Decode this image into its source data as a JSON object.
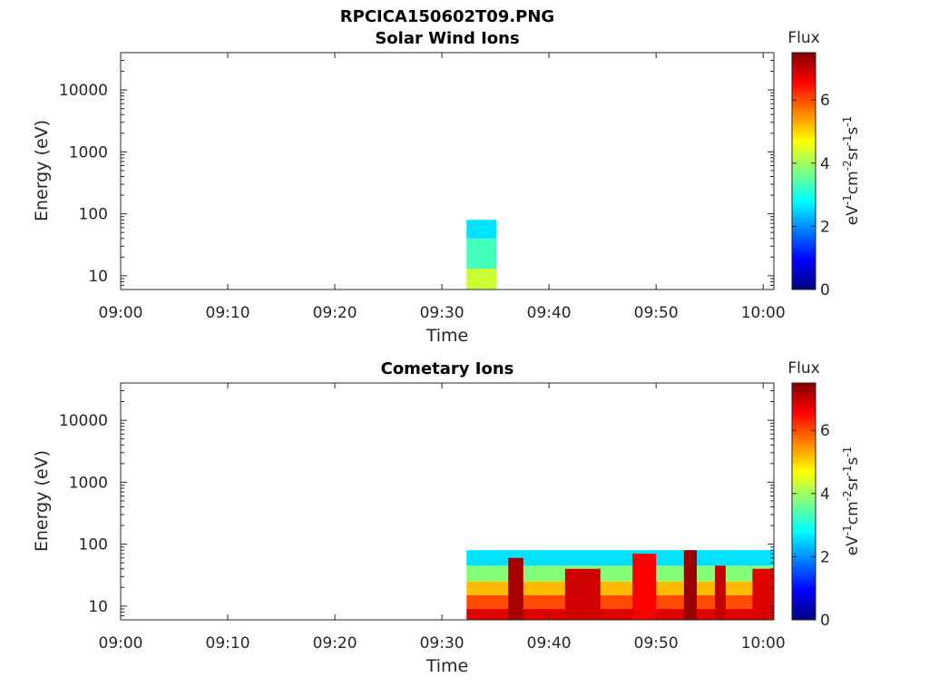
{
  "figure_title": "RPCICA150602T09.PNG",
  "colormap_stops": [
    "#00007f",
    "#0000ff",
    "#007fff",
    "#00ffff",
    "#7fff7f",
    "#ffff00",
    "#ff7f00",
    "#ff0000",
    "#7f0000"
  ],
  "chart_data": [
    {
      "type": "heatmap",
      "title": "Solar Wind Ions",
      "xlabel": "Time",
      "ylabel": "Energy (eV)",
      "x_ticks": [
        "09:00",
        "09:10",
        "09:20",
        "09:30",
        "09:40",
        "09:50",
        "10:00"
      ],
      "x_range_minutes": [
        0,
        61
      ],
      "y_scale": "log",
      "y_ticks": [
        "10",
        "100",
        "1000",
        "10000"
      ],
      "y_range": [
        6,
        40000
      ],
      "colorbar": {
        "label": "Flux",
        "units": "eV-1cm-2sr-1s-1",
        "ticks": [
          "0",
          "2",
          "4",
          "6"
        ],
        "range": [
          0,
          7.5
        ]
      },
      "regions": [
        {
          "t_start": 32.3,
          "t_end": 35.1,
          "e_low": 6,
          "e_high": 13,
          "flux": 4.3
        },
        {
          "t_start": 32.3,
          "t_end": 35.1,
          "e_low": 13,
          "e_high": 40,
          "flux": 3.3
        },
        {
          "t_start": 32.3,
          "t_end": 35.1,
          "e_low": 40,
          "e_high": 80,
          "flux": 2.6
        }
      ]
    },
    {
      "type": "heatmap",
      "title": "Cometary Ions",
      "xlabel": "Time",
      "ylabel": "Energy (eV)",
      "x_ticks": [
        "09:00",
        "09:10",
        "09:20",
        "09:30",
        "09:40",
        "09:50",
        "10:00"
      ],
      "x_range_minutes": [
        0,
        61
      ],
      "y_scale": "log",
      "y_ticks": [
        "10",
        "100",
        "1000",
        "10000"
      ],
      "y_range": [
        6,
        40000
      ],
      "colorbar": {
        "label": "Flux",
        "units": "eV-1cm-2sr-1s-1",
        "ticks": [
          "0",
          "2",
          "4",
          "6"
        ],
        "range": [
          0,
          7.5
        ]
      },
      "regions": [
        {
          "t_start": 32.3,
          "t_end": 61,
          "e_low": 6,
          "e_high": 9,
          "flux": 6.8
        },
        {
          "t_start": 32.3,
          "t_end": 61,
          "e_low": 9,
          "e_high": 15,
          "flux": 6.0
        },
        {
          "t_start": 32.3,
          "t_end": 61,
          "e_low": 15,
          "e_high": 25,
          "flux": 5.2
        },
        {
          "t_start": 32.3,
          "t_end": 61,
          "e_low": 25,
          "e_high": 45,
          "flux": 3.8
        },
        {
          "t_start": 32.3,
          "t_end": 61,
          "e_low": 45,
          "e_high": 80,
          "flux": 2.6
        },
        {
          "t_start": 36.2,
          "t_end": 37.6,
          "e_low": 6,
          "e_high": 60,
          "flux": 7.2
        },
        {
          "t_start": 41.5,
          "t_end": 44.8,
          "e_low": 6,
          "e_high": 40,
          "flux": 6.9
        },
        {
          "t_start": 47.8,
          "t_end": 50.0,
          "e_low": 6,
          "e_high": 70,
          "flux": 6.6
        },
        {
          "t_start": 52.6,
          "t_end": 53.8,
          "e_low": 6,
          "e_high": 80,
          "flux": 7.3
        },
        {
          "t_start": 55.5,
          "t_end": 56.5,
          "e_low": 6,
          "e_high": 45,
          "flux": 7.0
        },
        {
          "t_start": 59.0,
          "t_end": 61.0,
          "e_low": 6,
          "e_high": 40,
          "flux": 6.8
        }
      ]
    }
  ]
}
